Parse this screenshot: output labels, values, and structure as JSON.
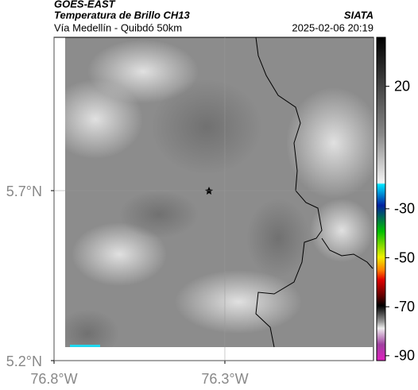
{
  "header": {
    "title": "GOES-EAST",
    "subtitle": "Temperatura de Brillo CH13",
    "region": "Vía Medellín - Quibdó 50km",
    "source": "SIATA",
    "datetime": "2025-02-06 20:19"
  },
  "map": {
    "xlim": [
      -76.8,
      -75.865
    ],
    "ylim": [
      5.2,
      6.151
    ],
    "xticks": [
      {
        "value": -76.8,
        "label": "76.8°W"
      },
      {
        "value": -76.3,
        "label": "76.3°W"
      }
    ],
    "yticks": [
      {
        "value": 5.7,
        "label": "5.7°N"
      },
      {
        "value": 5.2,
        "label": "5.2°N"
      }
    ]
  },
  "colorbar": {
    "lim": [
      -92,
      40
    ],
    "ticks": [
      20,
      -30,
      -50,
      -70,
      -90
    ]
  }
}
